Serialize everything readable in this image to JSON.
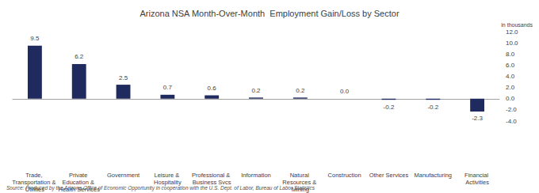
{
  "chart_data": {
    "type": "bar",
    "title": "Arizona NSA Month-Over-Month  Employment Gain/Loss by Sector",
    "ylabel": "in thousands",
    "source": "Source: Produced by the Arizona Office of Economic Opportunity in cooperation with the U.S. Dept. of Labor, Bureau of Labor Statistics",
    "categories": [
      "Trade, Transportation & Utilities",
      "Private Education & Health Services",
      "Government",
      "Leisure & Hospitality",
      "Professional & Business Svcs",
      "Information",
      "Natural Resources & Mining",
      "Construction",
      "Other Services",
      "Manufacturing",
      "Financial Activities"
    ],
    "values": [
      9.5,
      6.2,
      2.5,
      0.7,
      0.6,
      0.2,
      0.2,
      0.0,
      -0.2,
      -0.2,
      -2.3
    ],
    "value_labels": [
      "9.5",
      "6.2",
      "2.5",
      "0.7",
      "0.6",
      "0.2",
      "0.2",
      "0.0",
      "-0.2",
      "-0.2",
      "-2.3"
    ],
    "color": "#1f2a5e",
    "data_labels": true,
    "grid": false,
    "ylim": [
      -4,
      12
    ],
    "yticks": [
      {
        "value": -4,
        "label": "-4.0"
      },
      {
        "value": -2,
        "label": "-2.0"
      },
      {
        "value": 0,
        "label": "0.0"
      },
      {
        "value": 2,
        "label": "2.0"
      },
      {
        "value": 4,
        "label": "4.0"
      },
      {
        "value": 6,
        "label": "6.0"
      },
      {
        "value": 8,
        "label": "8.0"
      },
      {
        "value": 10,
        "label": "10.0"
      },
      {
        "value": 12,
        "label": "12.0"
      }
    ]
  }
}
